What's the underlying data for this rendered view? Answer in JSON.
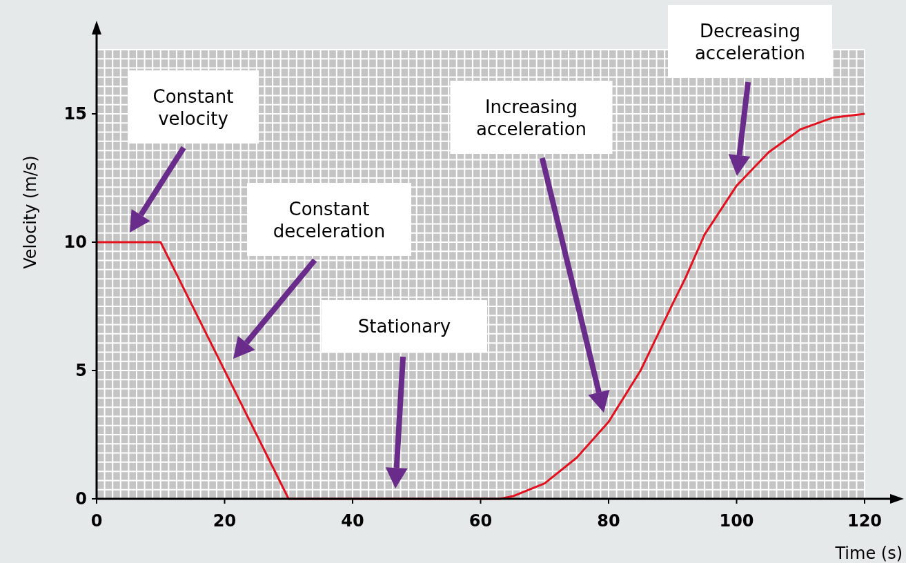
{
  "chart_data": {
    "type": "line",
    "xlabel": "Time (s)",
    "ylabel": "Velocity (m/s)",
    "xlim": [
      0,
      120
    ],
    "ylim": [
      0,
      17.5
    ],
    "xticks": [
      0,
      20,
      40,
      60,
      80,
      100,
      120
    ],
    "yticks": [
      0,
      5,
      10,
      15
    ],
    "grid": true,
    "marker": "none",
    "line_style": "solid",
    "series": [
      {
        "color": "#e3101e",
        "x": [
          0,
          10,
          30,
          63,
          65,
          70,
          75,
          80,
          85,
          90,
          92,
          95,
          100,
          105,
          110,
          115,
          120
        ],
        "values": [
          10,
          10,
          0,
          0,
          0.1,
          0.6,
          1.6,
          3.0,
          5.0,
          7.6,
          8.6,
          10.3,
          12.2,
          13.5,
          14.4,
          14.85,
          15
        ]
      }
    ],
    "annotations": [
      "Constant velocity",
      "Constant deceleration",
      "Stationary",
      "Increasing acceleration",
      "Decreasing acceleration"
    ]
  }
}
